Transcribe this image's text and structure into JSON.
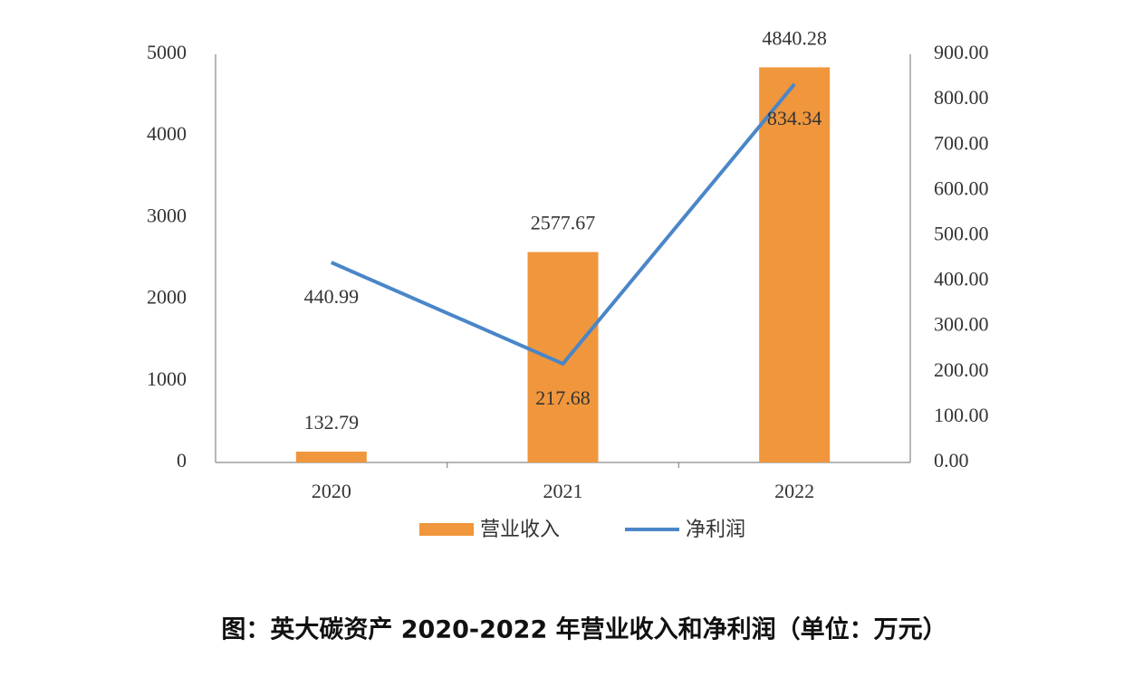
{
  "chart_data": {
    "type": "bar-line",
    "title": "图：英大碳资产 2020-2022 年营业收入和净利润（单位：万元）",
    "categories": [
      "2020",
      "2021",
      "2022"
    ],
    "series": [
      {
        "name": "营业收入",
        "type": "bar",
        "color": "#f0963c",
        "values": [
          132.79,
          2577.67,
          4840.28
        ]
      },
      {
        "name": "净利润",
        "type": "line",
        "axis": "y2",
        "color": "#4a86c8",
        "values": [
          440.99,
          217.68,
          834.34
        ]
      }
    ],
    "ylim": [
      0,
      5000
    ],
    "yticks": [
      0,
      1000,
      2000,
      3000,
      4000,
      5000
    ],
    "y2lim": [
      0,
      900
    ],
    "y2ticks": [
      {
        "value": 0,
        "label": "0.00"
      },
      {
        "value": 100,
        "label": "100.00"
      },
      {
        "value": 200,
        "label": "200.00"
      },
      {
        "value": 300,
        "label": "300.00"
      },
      {
        "value": 400,
        "label": "400.00"
      },
      {
        "value": 500,
        "label": "500.00"
      },
      {
        "value": 600,
        "label": "600.00"
      },
      {
        "value": 700,
        "label": "700.00"
      },
      {
        "value": 800,
        "label": "800.00"
      },
      {
        "value": 900,
        "label": "900.00"
      }
    ],
    "grid": false,
    "legend": "bottom"
  }
}
